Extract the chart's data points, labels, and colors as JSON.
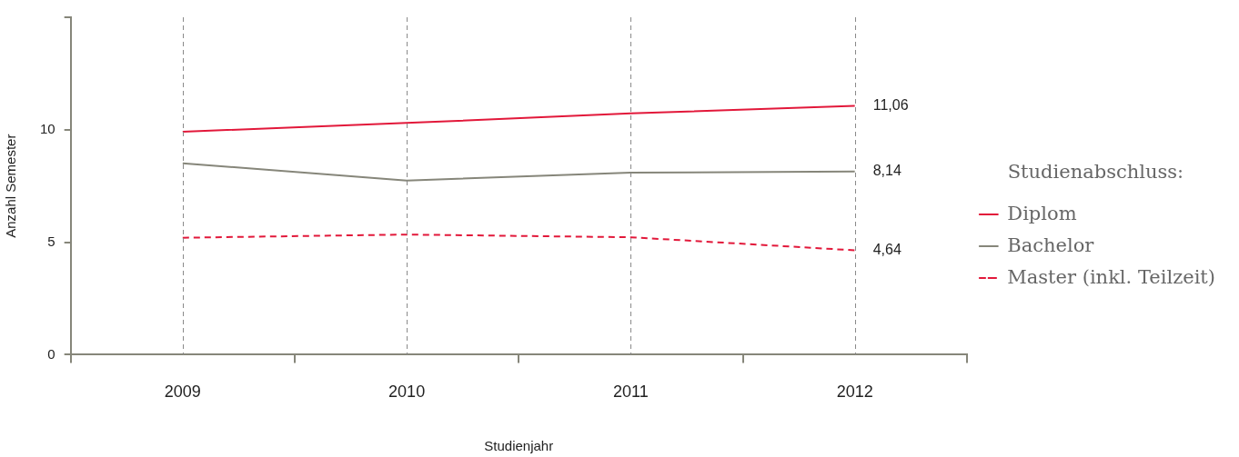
{
  "chart_data": {
    "type": "line",
    "xlabel": "Studienjahr",
    "ylabel": "Anzahl Semester",
    "legend_title": "Studienabschluss:",
    "categories": [
      "2009",
      "2010",
      "2011",
      "2012"
    ],
    "series": [
      {
        "name": "Diplom",
        "color": "#e2183a",
        "line_style": "solid",
        "values": [
          9.91,
          10.3,
          10.73,
          11.06
        ],
        "value_labels": [
          null,
          null,
          null,
          "11,06"
        ]
      },
      {
        "name": "Bachelor",
        "color": "#86867a",
        "line_style": "solid",
        "values": [
          8.51,
          7.74,
          8.09,
          8.14
        ],
        "value_labels": [
          null,
          null,
          null,
          "8,14"
        ]
      },
      {
        "name": "Master (inkl. Teilzeit)",
        "color": "#e2183a",
        "line_style": "dashed",
        "values": [
          5.2,
          5.34,
          5.22,
          4.64
        ],
        "value_labels": [
          null,
          null,
          null,
          "4,64"
        ]
      }
    ],
    "ylim": [
      0,
      15
    ],
    "yticks": [
      0,
      5,
      10,
      {
        "value": 15,
        "label": null
      }
    ],
    "grid": "x",
    "legend": "right",
    "marker": "none"
  }
}
